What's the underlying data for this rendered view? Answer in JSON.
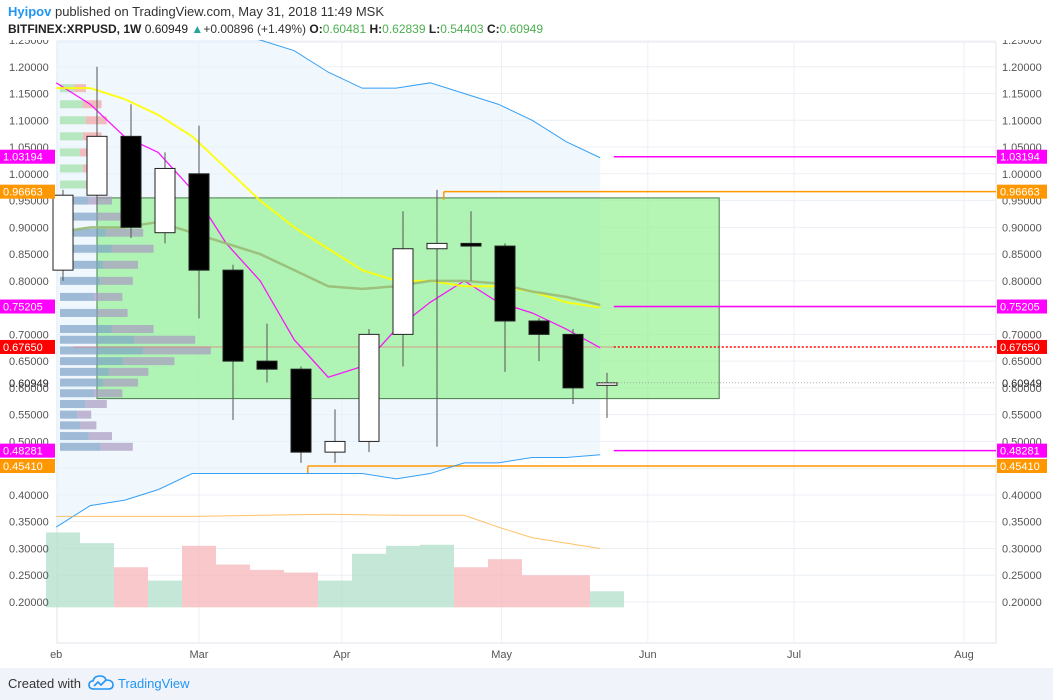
{
  "header": {
    "author": "Hyipov",
    "published": "published on TradingView.com, May 31, 2018 11:49 MSK",
    "symbol": "BITFINEX:XRPUSD, 1W",
    "last": "0.60949",
    "change": "+0.00896 (+1.49%)",
    "o_label": "O:",
    "o": "0.60481",
    "h_label": "H:",
    "h": "0.62839",
    "l_label": "L:",
    "l": "0.54403",
    "c_label": "C:",
    "c": "0.60949",
    "up_arrow": "▲"
  },
  "footer": {
    "created": "Created with",
    "brand": "TradingView",
    "logo_icon": "tradingview-cloud-icon"
  },
  "chart_data": {
    "type": "candlestick",
    "symbol": "BITFINEX:XRPUSD",
    "interval": "1W",
    "ylim": [
      0.19,
      1.26
    ],
    "y_ticks": [
      "0.20000",
      "0.25000",
      "0.30000",
      "0.35000",
      "0.40000",
      "0.45000",
      "0.50000",
      "0.55000",
      "0.60000",
      "0.65000",
      "0.70000",
      "0.75000",
      "0.80000",
      "0.85000",
      "0.90000",
      "0.95000",
      "1.00000",
      "1.05000",
      "1.10000",
      "1.15000",
      "1.20000",
      "1.25000"
    ],
    "x_labels": [
      {
        "label": "eb",
        "week": -0.2
      },
      {
        "label": "Mar",
        "week": 4
      },
      {
        "label": "Apr",
        "week": 8.2
      },
      {
        "label": "May",
        "week": 12.9
      },
      {
        "label": "Jun",
        "week": 17.2
      },
      {
        "label": "Jul",
        "week": 21.5
      },
      {
        "label": "Aug",
        "week": 26.5
      }
    ],
    "candles": [
      {
        "o": 0.82,
        "h": 0.97,
        "l": 0.8,
        "c": 0.96
      },
      {
        "o": 0.96,
        "h": 1.2,
        "l": 0.93,
        "c": 1.07
      },
      {
        "o": 1.07,
        "h": 1.13,
        "l": 0.88,
        "c": 0.9
      },
      {
        "o": 0.89,
        "h": 1.04,
        "l": 0.87,
        "c": 1.01
      },
      {
        "o": 1.0,
        "h": 1.09,
        "l": 0.73,
        "c": 0.82
      },
      {
        "o": 0.82,
        "h": 0.83,
        "l": 0.54,
        "c": 0.65
      },
      {
        "o": 0.65,
        "h": 0.72,
        "l": 0.61,
        "c": 0.635
      },
      {
        "o": 0.635,
        "h": 0.64,
        "l": 0.46,
        "c": 0.48
      },
      {
        "o": 0.48,
        "h": 0.56,
        "l": 0.46,
        "c": 0.5
      },
      {
        "o": 0.5,
        "h": 0.71,
        "l": 0.48,
        "c": 0.7
      },
      {
        "o": 0.7,
        "h": 0.93,
        "l": 0.64,
        "c": 0.86
      },
      {
        "o": 0.86,
        "h": 0.97,
        "l": 0.49,
        "c": 0.87
      },
      {
        "o": 0.87,
        "h": 0.93,
        "l": 0.8,
        "c": 0.865
      },
      {
        "o": 0.865,
        "h": 0.87,
        "l": 0.63,
        "c": 0.725
      },
      {
        "o": 0.725,
        "h": 0.73,
        "l": 0.65,
        "c": 0.7
      },
      {
        "o": 0.7,
        "h": 0.71,
        "l": 0.57,
        "c": 0.6
      },
      {
        "o": 0.60481,
        "h": 0.62839,
        "l": 0.54403,
        "c": 0.60949
      }
    ],
    "volume": [
      {
        "v": 0.33,
        "up": true
      },
      {
        "v": 0.31,
        "up": true
      },
      {
        "v": 0.265,
        "up": false
      },
      {
        "v": 0.24,
        "up": true
      },
      {
        "v": 0.305,
        "up": false
      },
      {
        "v": 0.27,
        "up": false
      },
      {
        "v": 0.26,
        "up": false
      },
      {
        "v": 0.255,
        "up": false
      },
      {
        "v": 0.24,
        "up": true
      },
      {
        "v": 0.29,
        "up": true
      },
      {
        "v": 0.305,
        "up": true
      },
      {
        "v": 0.307,
        "up": true
      },
      {
        "v": 0.265,
        "up": false
      },
      {
        "v": 0.28,
        "up": false
      },
      {
        "v": 0.25,
        "up": false
      },
      {
        "v": 0.25,
        "up": false
      },
      {
        "v": 0.22,
        "up": true
      }
    ],
    "series": [
      {
        "color": "#ff00ff",
        "values": [
          1.17,
          1.13,
          1.07,
          1.04,
          0.97,
          0.87,
          0.8,
          0.69,
          0.62,
          0.64,
          0.71,
          0.76,
          0.8,
          0.76,
          0.74,
          0.71,
          0.675
        ]
      },
      {
        "color": "#ffff00",
        "values": [
          1.16,
          1.16,
          1.14,
          1.11,
          1.07,
          1.01,
          0.95,
          0.9,
          0.86,
          0.82,
          0.8,
          0.8,
          0.79,
          0.79,
          0.78,
          0.76,
          0.75
        ]
      },
      {
        "color": "#99bb77",
        "values": [
          0.89,
          0.9,
          0.9,
          0.91,
          0.89,
          0.87,
          0.85,
          0.82,
          0.79,
          0.785,
          0.79,
          0.8,
          0.8,
          0.795,
          0.78,
          0.77,
          0.755
        ]
      },
      {
        "color": "#2196f3",
        "values": [
          0.34,
          0.38,
          0.39,
          0.41,
          0.44,
          0.44,
          0.44,
          0.44,
          0.44,
          0.44,
          0.43,
          0.44,
          0.46,
          0.46,
          0.47,
          0.47,
          0.475
        ]
      },
      {
        "color": "#2196f3",
        "values": [
          1.26,
          1.26,
          1.26,
          1.26,
          1.26,
          1.26,
          1.25,
          1.23,
          1.19,
          1.16,
          1.16,
          1.17,
          1.15,
          1.13,
          1.1,
          1.06,
          1.03
        ]
      },
      {
        "color": "#ffa726",
        "values": [
          0.36,
          0.36,
          0.36,
          0.36,
          0.36,
          0.361,
          0.362,
          0.363,
          0.364,
          0.363,
          0.362,
          0.362,
          0.362,
          0.34,
          0.32,
          0.31,
          0.3
        ]
      }
    ],
    "volume_profile": [
      {
        "p": 1.16,
        "len": 0.05
      },
      {
        "p": 1.13,
        "len": 0.08
      },
      {
        "p": 1.1,
        "len": 0.09
      },
      {
        "p": 1.07,
        "len": 0.08
      },
      {
        "p": 1.04,
        "len": 0.07
      },
      {
        "p": 1.01,
        "len": 0.08
      },
      {
        "p": 0.98,
        "len": 0.09
      },
      {
        "p": 0.95,
        "len": 0.1
      },
      {
        "p": 0.92,
        "len": 0.13
      },
      {
        "p": 0.89,
        "len": 0.16
      },
      {
        "p": 0.86,
        "len": 0.18
      },
      {
        "p": 0.83,
        "len": 0.15
      },
      {
        "p": 0.8,
        "len": 0.14
      },
      {
        "p": 0.77,
        "len": 0.12
      },
      {
        "p": 0.74,
        "len": 0.13
      },
      {
        "p": 0.71,
        "len": 0.18
      },
      {
        "p": 0.69,
        "len": 0.26
      },
      {
        "p": 0.67,
        "len": 0.29
      },
      {
        "p": 0.65,
        "len": 0.22
      },
      {
        "p": 0.63,
        "len": 0.17
      },
      {
        "p": 0.61,
        "len": 0.15
      },
      {
        "p": 0.59,
        "len": 0.12
      },
      {
        "p": 0.57,
        "len": 0.09
      },
      {
        "p": 0.55,
        "len": 0.06
      },
      {
        "p": 0.53,
        "len": 0.07
      },
      {
        "p": 0.51,
        "len": 0.1
      },
      {
        "p": 0.49,
        "len": 0.14
      }
    ],
    "range_box": {
      "top": 0.955,
      "bottom": 0.58,
      "start_week": 1,
      "end_week": 19.3
    },
    "horizontal_levels": [
      {
        "price": 1.03194,
        "label": "1.03194",
        "color": "#ff00ff",
        "start_week": 16.2
      },
      {
        "price": 0.96663,
        "label": "0.96663",
        "color": "#ff9800",
        "start_week": 11.2
      },
      {
        "price": 0.75205,
        "label": "0.75205",
        "color": "#ff00ff",
        "start_week": 16.2
      },
      {
        "price": 0.6765,
        "label": "0.67650",
        "color": "#ff0000",
        "start_week": 0.3,
        "dotted_from_week": 16.2
      },
      {
        "price": 0.48281,
        "label": "0.48281",
        "color": "#ff00ff",
        "start_week": 16.2
      },
      {
        "price": 0.4541,
        "label": "0.45410",
        "color": "#ff9800",
        "start_week": 7.2
      }
    ],
    "last_price": {
      "price": 0.60949,
      "label": "0.60949"
    }
  }
}
